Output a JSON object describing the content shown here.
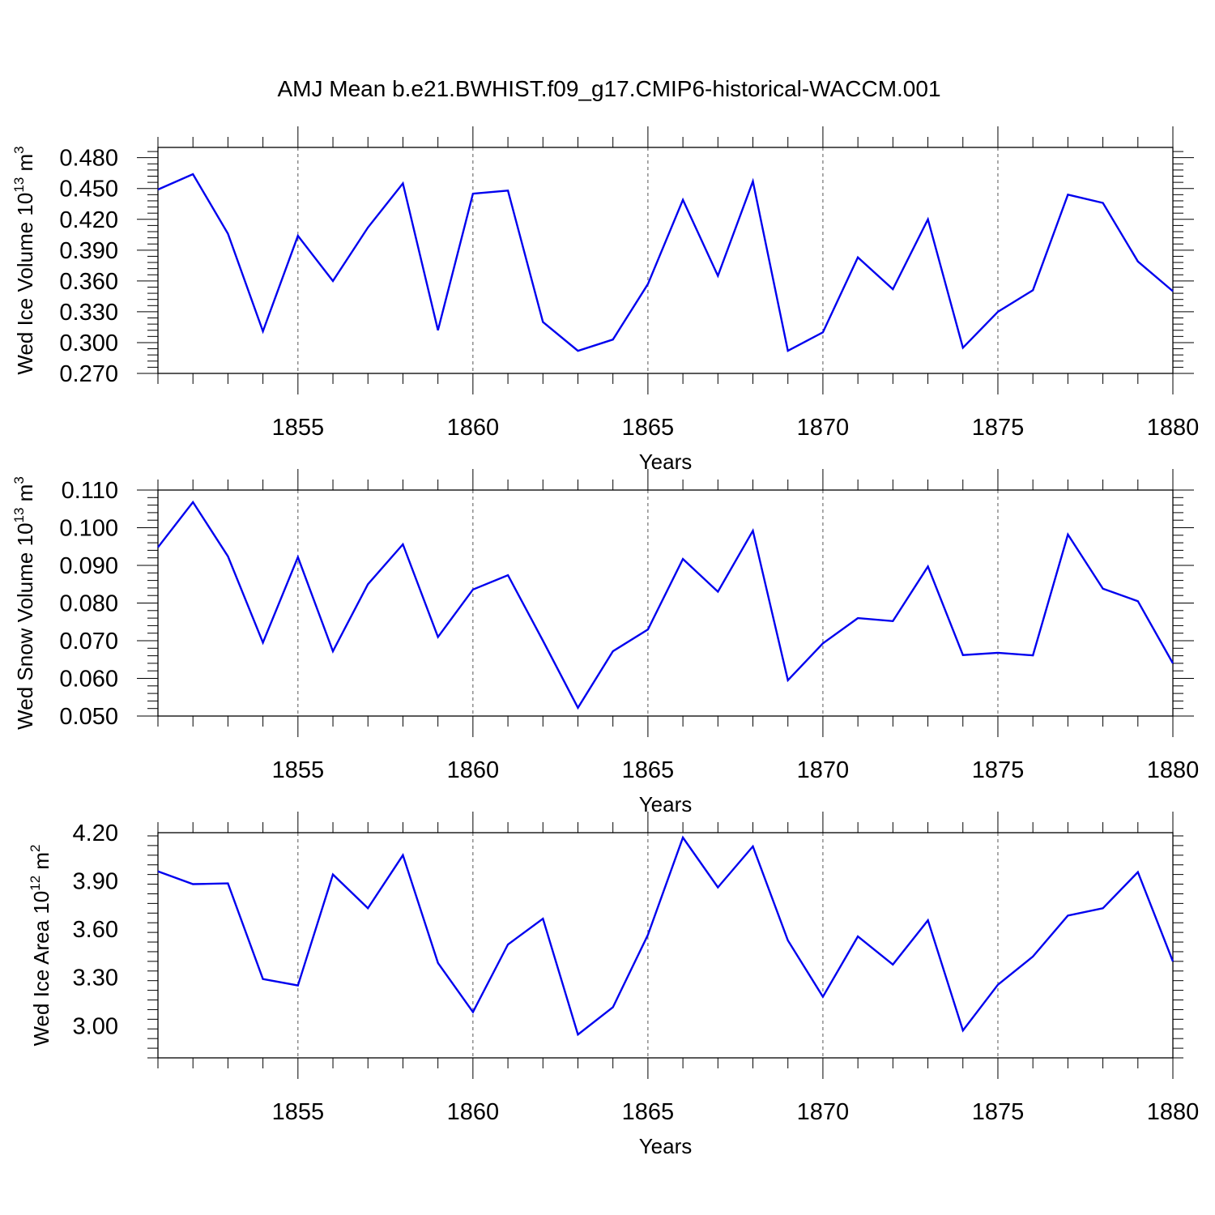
{
  "figure": {
    "title": "AMJ Mean b.e21.BWHIST.f09_g17.CMIP6-historical-WACCM.001",
    "line_color": "#0000ee"
  },
  "chart_data": [
    {
      "type": "line",
      "xlabel": "Years",
      "ylabel": {
        "text": "Wed Ice Volume 10",
        "sup": "13",
        "unit": " m",
        "unit_sup": "3"
      },
      "xlim": [
        1851,
        1880
      ],
      "ylim": [
        0.27,
        0.49
      ],
      "xticks": [
        1855,
        1860,
        1865,
        1870,
        1875,
        1880
      ],
      "xtick_labels": [
        "1855",
        "1860",
        "1865",
        "1870",
        "1875",
        "1880"
      ],
      "yticks": [
        0.27,
        0.3,
        0.33,
        0.36,
        0.39,
        0.42,
        0.45,
        0.48
      ],
      "ytick_labels": [
        "0.270",
        "0.300",
        "0.330",
        "0.360",
        "0.390",
        "0.420",
        "0.450",
        "0.480"
      ],
      "grid_x": true,
      "series": [
        {
          "x": [
            1851,
            1852,
            1853,
            1854,
            1855,
            1856,
            1857,
            1858,
            1859,
            1860,
            1861,
            1862,
            1863,
            1864,
            1865,
            1866,
            1867,
            1868,
            1869,
            1870,
            1871,
            1872,
            1873,
            1874,
            1875,
            1876,
            1877,
            1878,
            1879,
            1880
          ],
          "values": [
            0.449,
            0.464,
            0.406,
            0.311,
            0.404,
            0.36,
            0.412,
            0.455,
            0.312,
            0.445,
            0.448,
            0.32,
            0.292,
            0.303,
            0.357,
            0.439,
            0.365,
            0.457,
            0.292,
            0.31,
            0.383,
            0.352,
            0.42,
            0.295,
            0.33,
            0.351,
            0.444,
            0.436,
            0.379,
            0.35
          ]
        }
      ]
    },
    {
      "type": "line",
      "xlabel": "Years",
      "ylabel": {
        "text": "Wed Snow Volume 10",
        "sup": "13",
        "unit": " m",
        "unit_sup": "3"
      },
      "xlim": [
        1851,
        1880
      ],
      "ylim": [
        0.05,
        0.11
      ],
      "xticks": [
        1855,
        1860,
        1865,
        1870,
        1875,
        1880
      ],
      "xtick_labels": [
        "1855",
        "1860",
        "1865",
        "1870",
        "1875",
        "1880"
      ],
      "yticks": [
        0.05,
        0.06,
        0.07,
        0.08,
        0.09,
        0.1,
        0.11
      ],
      "ytick_labels": [
        "0.050",
        "0.060",
        "0.070",
        "0.080",
        "0.090",
        "0.100",
        "0.110"
      ],
      "grid_x": true,
      "series": [
        {
          "x": [
            1851,
            1852,
            1853,
            1854,
            1855,
            1856,
            1857,
            1858,
            1859,
            1860,
            1861,
            1862,
            1863,
            1864,
            1865,
            1866,
            1867,
            1868,
            1869,
            1870,
            1871,
            1872,
            1873,
            1874,
            1875,
            1876,
            1877,
            1878,
            1879,
            1880
          ],
          "values": [
            0.0948,
            0.1068,
            0.0924,
            0.0695,
            0.0922,
            0.0672,
            0.085,
            0.0956,
            0.071,
            0.0836,
            0.0874,
            0.07,
            0.0522,
            0.0672,
            0.073,
            0.0917,
            0.083,
            0.0992,
            0.0595,
            0.0693,
            0.076,
            0.0752,
            0.0897,
            0.0662,
            0.0668,
            0.0661,
            0.0982,
            0.0838,
            0.0805,
            0.064
          ]
        }
      ]
    },
    {
      "type": "line",
      "xlabel": "Years",
      "ylabel": {
        "text": "Wed Ice Area 10",
        "sup": "12",
        "unit": " m",
        "unit_sup": "2"
      },
      "xlim": [
        1851,
        1880
      ],
      "ylim": [
        2.8,
        4.2
      ],
      "xticks": [
        1855,
        1860,
        1865,
        1870,
        1875,
        1880
      ],
      "xtick_labels": [
        "1855",
        "1860",
        "1865",
        "1870",
        "1875",
        "1880"
      ],
      "yticks": [
        3.0,
        3.3,
        3.6,
        3.9,
        4.2
      ],
      "ytick_labels": [
        "3.00",
        "3.30",
        "3.60",
        "3.90",
        "4.20"
      ],
      "grid_x": true,
      "series": [
        {
          "x": [
            1851,
            1852,
            1853,
            1854,
            1855,
            1856,
            1857,
            1858,
            1859,
            1860,
            1861,
            1862,
            1863,
            1864,
            1865,
            1866,
            1867,
            1868,
            1869,
            1870,
            1871,
            1872,
            1873,
            1874,
            1875,
            1876,
            1877,
            1878,
            1879,
            1880
          ],
          "values": [
            3.96,
            3.88,
            3.885,
            3.29,
            3.25,
            3.94,
            3.73,
            4.06,
            3.39,
            3.085,
            3.505,
            3.665,
            2.945,
            3.115,
            3.565,
            4.17,
            3.86,
            4.115,
            3.53,
            3.18,
            3.555,
            3.38,
            3.655,
            2.97,
            3.255,
            3.43,
            3.685,
            3.73,
            3.955,
            3.4
          ]
        }
      ]
    }
  ]
}
